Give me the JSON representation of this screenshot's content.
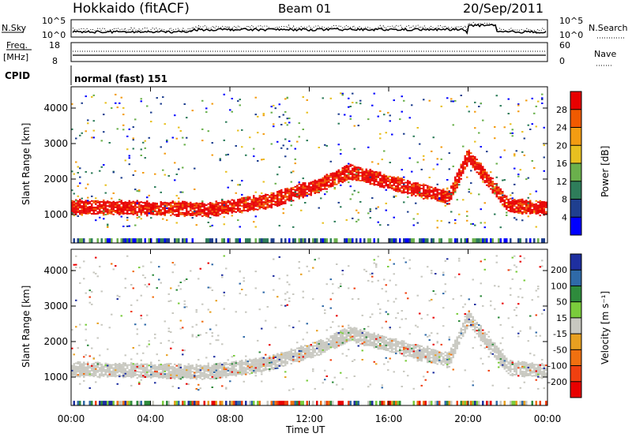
{
  "header": {
    "station": "Hokkaido (fitACF)",
    "beam": "Beam 01",
    "date": "20/Sep/2011"
  },
  "top_panels": {
    "nsky_label": "N.Sky",
    "nsearch_label": "N.Search",
    "nsky_ticks": [
      "10^5",
      "10^0"
    ],
    "nsearch_ticks": [
      "10^5",
      "10^0"
    ],
    "freq_label": "Freq.",
    "freq_unit": "[MHz]",
    "freq_ticks": [
      "18",
      "8"
    ],
    "nave_label": "Nave",
    "nave_ticks": [
      "60",
      "0"
    ],
    "cpid_label": "CPID",
    "cpid_value": "normal (fast) 151"
  },
  "colors": {
    "power_scale": [
      "#0000ff",
      "#1f3f8f",
      "#2e7d5a",
      "#6ab04c",
      "#e8c020",
      "#f39c12",
      "#f05a00",
      "#e80000"
    ],
    "velocity_scale": [
      "#1e2fa0",
      "#2f6aa8",
      "#2e8b3c",
      "#7acc3c",
      "#c8c8c0",
      "#e8a020",
      "#f07010",
      "#f04010",
      "#e80000"
    ]
  },
  "chart_data": [
    {
      "type": "heatmap",
      "name": "power",
      "ylabel": "Slant Range [km]",
      "xlabel": "Time UT",
      "x_ticks": [
        "00:00",
        "04:00",
        "08:00",
        "12:00",
        "16:00",
        "20:00",
        "00:00"
      ],
      "y_ticks": [
        "1000",
        "2000",
        "3000",
        "4000"
      ],
      "ylim": [
        200,
        4600
      ],
      "xlim_hours": [
        0,
        24
      ],
      "colorbar": {
        "label": "Power [dB]",
        "ticks": [
          "4",
          "8",
          "12",
          "16",
          "20",
          "24",
          "28"
        ]
      }
    },
    {
      "type": "heatmap",
      "name": "velocity",
      "ylabel": "Slant Range [km]",
      "xlabel": "Time UT",
      "x_ticks": [
        "00:00",
        "04:00",
        "08:00",
        "12:00",
        "16:00",
        "20:00",
        "00:00"
      ],
      "y_ticks": [
        "1000",
        "2000",
        "3000",
        "4000"
      ],
      "ylim": [
        200,
        4600
      ],
      "xlim_hours": [
        0,
        24
      ],
      "colorbar": {
        "label": "Velocity [m s⁻¹]",
        "ticks": [
          "200",
          "100",
          "50",
          "15",
          "-15",
          "-50",
          "-100",
          "-200"
        ]
      }
    }
  ]
}
